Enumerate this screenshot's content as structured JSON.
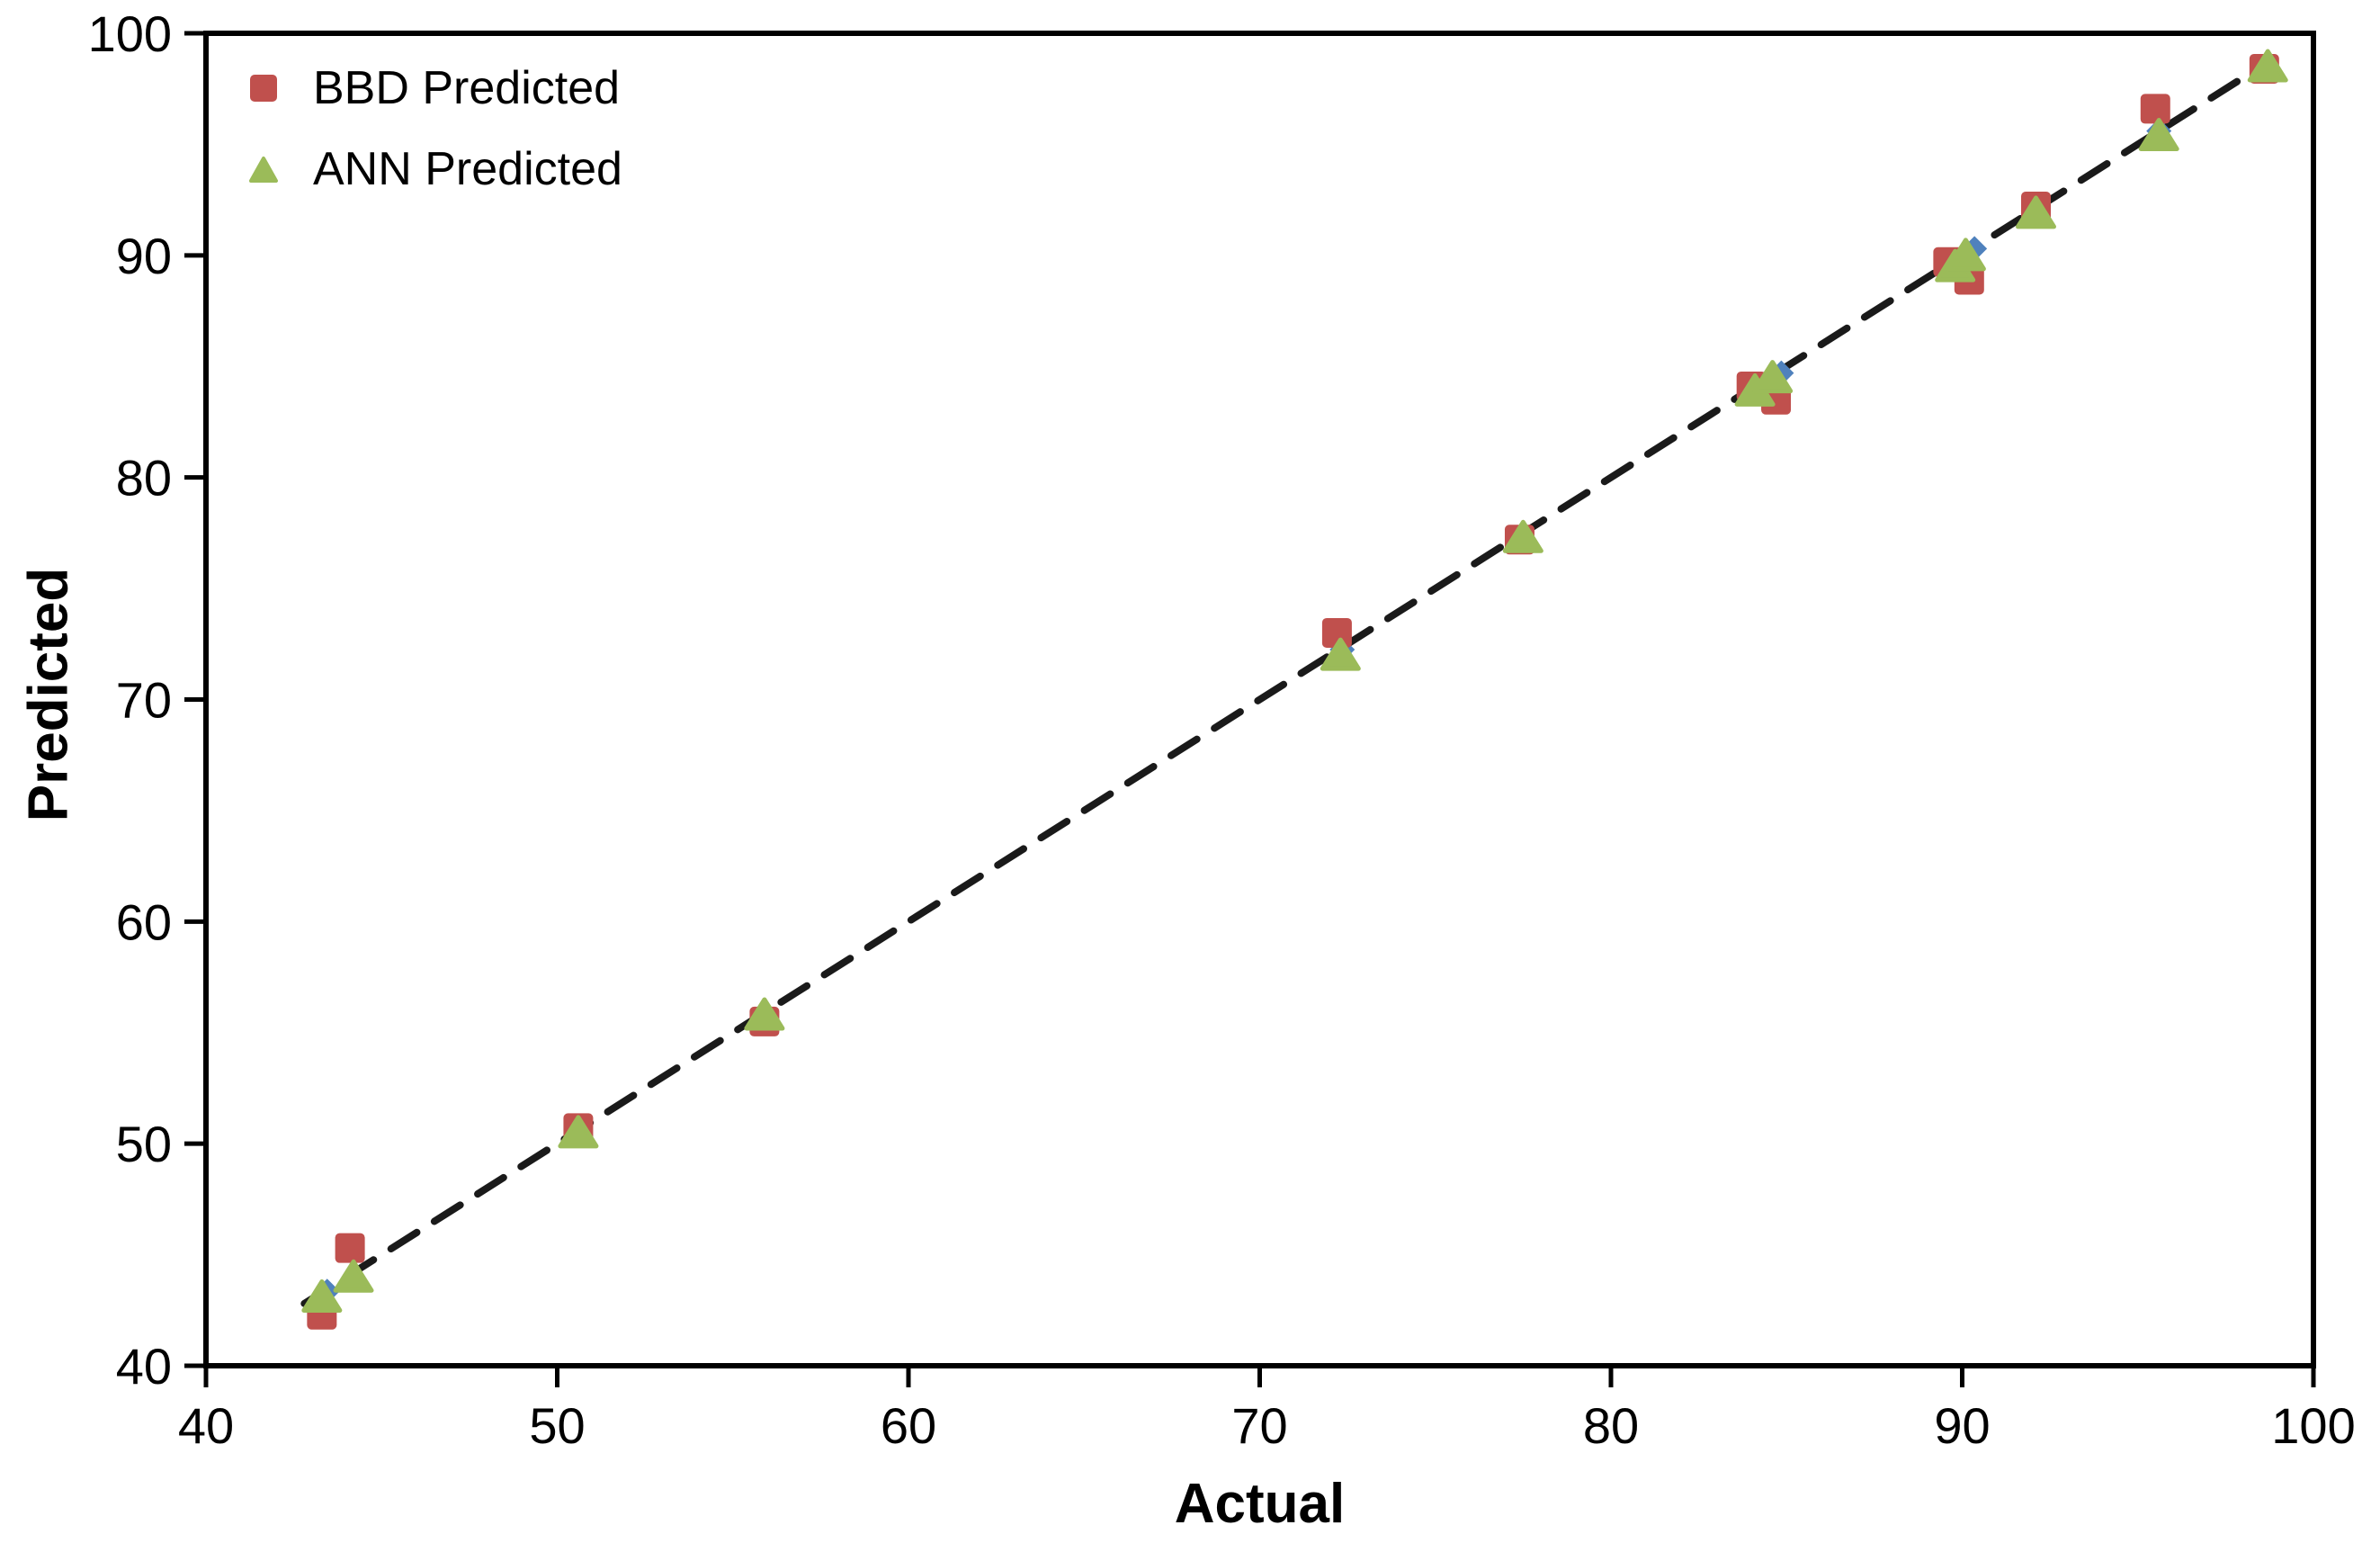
{
  "chart_data": {
    "type": "scatter",
    "title": "",
    "xlabel": "Actual",
    "ylabel": "Predicted",
    "xlim": [
      40,
      100
    ],
    "ylim": [
      40,
      100
    ],
    "x_ticks": [
      40,
      50,
      60,
      70,
      80,
      90,
      100
    ],
    "y_ticks": [
      40,
      50,
      60,
      70,
      80,
      90,
      100
    ],
    "grid": false,
    "legend_position": "top-left-inside",
    "frame": true,
    "axis_color": "#000000",
    "trendline": {
      "style": "dashed",
      "color": "#1a1a1a",
      "x1": 42.8,
      "y1": 42.8,
      "x2": 98.7,
      "y2": 98.7
    },
    "series": [
      {
        "name": "BBD Predicted",
        "marker": "square",
        "color": "#c0504d",
        "points": [
          [
            43.3,
            42.3
          ],
          [
            44.1,
            45.3
          ],
          [
            50.6,
            50.7
          ],
          [
            55.9,
            55.5
          ],
          [
            72.2,
            73.0
          ],
          [
            77.4,
            77.2
          ],
          [
            84.0,
            84.1
          ],
          [
            84.7,
            83.5
          ],
          [
            89.6,
            89.7
          ],
          [
            90.2,
            88.9
          ],
          [
            92.1,
            92.2
          ],
          [
            95.5,
            96.6
          ],
          [
            98.6,
            98.4
          ]
        ]
      },
      {
        "name": "ANN Predicted",
        "marker": "triangle",
        "color": "#9bbb59",
        "points": [
          [
            43.3,
            43.1
          ],
          [
            44.2,
            44.0
          ],
          [
            50.6,
            50.5
          ],
          [
            55.9,
            55.8
          ],
          [
            72.3,
            72.0
          ],
          [
            77.5,
            77.3
          ],
          [
            84.1,
            83.9
          ],
          [
            84.6,
            84.5
          ],
          [
            89.8,
            89.5
          ],
          [
            90.1,
            90.0
          ],
          [
            92.1,
            91.9
          ],
          [
            95.6,
            95.4
          ],
          [
            98.7,
            98.5
          ]
        ]
      }
    ],
    "occluded_markers": {
      "note": "blue diamond markers almost fully hidden behind triangles",
      "marker": "diamond",
      "color": "#4f81bd",
      "points": [
        [
          43.45,
          43.35
        ],
        [
          72.35,
          72.25
        ],
        [
          84.85,
          84.7
        ],
        [
          90.35,
          90.3
        ],
        [
          95.6,
          95.6
        ]
      ]
    }
  },
  "legend": {
    "items": [
      {
        "label": "BBD Predicted"
      },
      {
        "label": "ANN Predicted"
      }
    ]
  },
  "axes": {
    "x_title": "Actual",
    "y_title": "Predicted"
  }
}
